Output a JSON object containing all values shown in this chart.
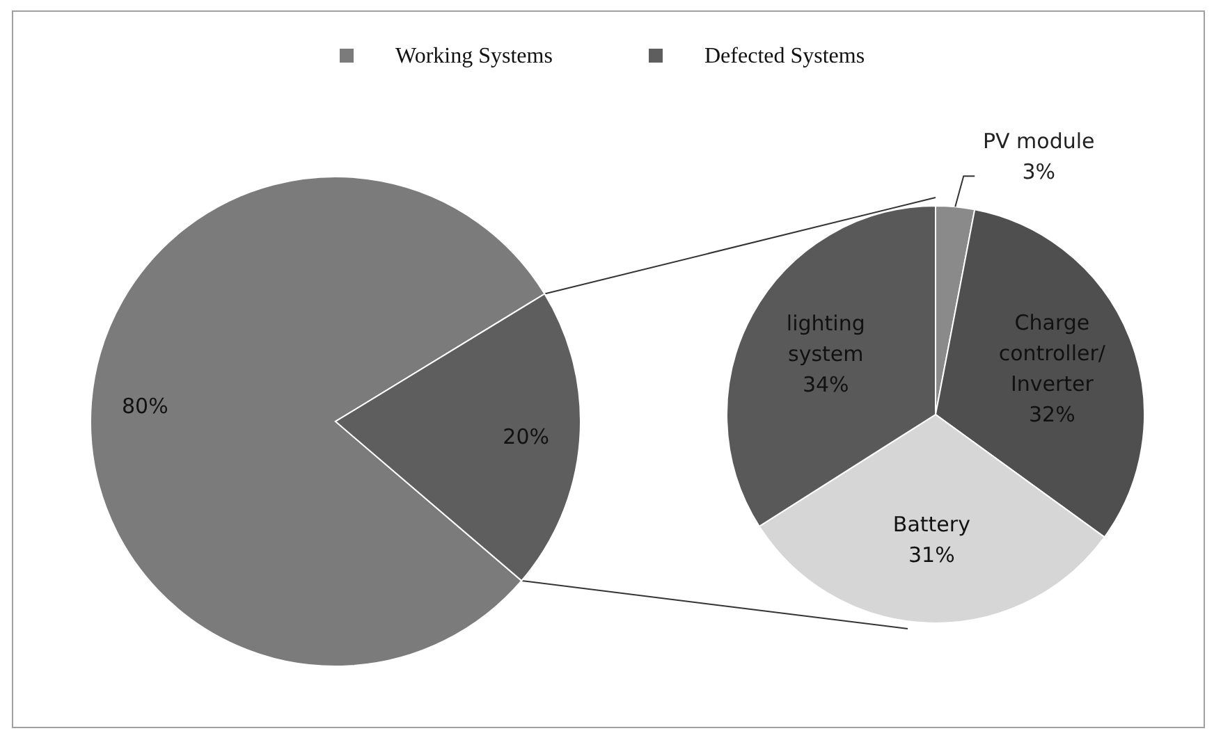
{
  "chart_data": [
    {
      "type": "pie",
      "categories": [
        "Working Systems",
        "Defected Systems"
      ],
      "values": [
        80,
        20
      ],
      "colors": [
        "#7b7b7b",
        "#5e5e5e"
      ],
      "value_labels": [
        "80%",
        "20%"
      ],
      "legend": "top"
    },
    {
      "type": "pie",
      "categories": [
        "PV module",
        "Charge controller/ Inverter",
        "Battery",
        "lighting system"
      ],
      "values": [
        3,
        32,
        31,
        34
      ],
      "colors": [
        "#8a8a8a",
        "#4f4f4f",
        "#d6d6d6",
        "#595959"
      ],
      "value_labels": [
        "3%",
        "32%",
        "31%",
        "34%"
      ]
    }
  ]
}
